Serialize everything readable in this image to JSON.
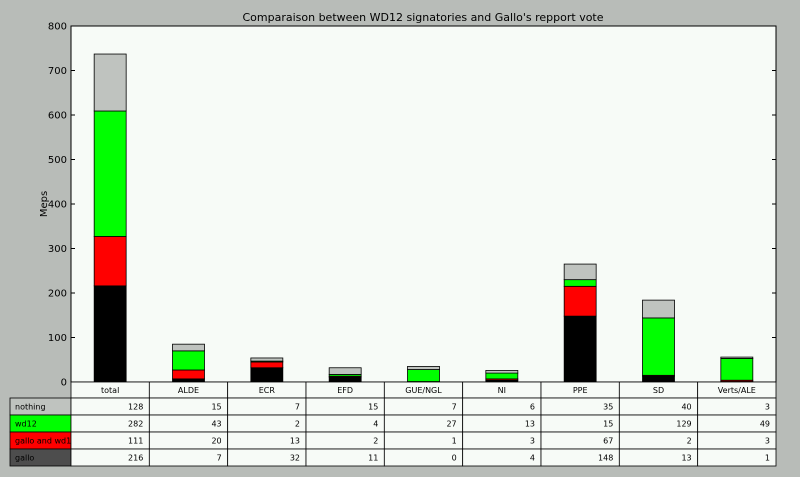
{
  "chart_data": {
    "type": "bar",
    "stacked": true,
    "title": "Comparaison between WD12 signatories and Gallo's repport vote",
    "ylabel": "Meps",
    "xlabel": "",
    "ylim": [
      0,
      800
    ],
    "yticks": [
      0,
      100,
      200,
      300,
      400,
      500,
      600,
      700,
      800
    ],
    "grid": false,
    "legend": "table below plot",
    "categories": [
      "total",
      "ALDE",
      "ECR",
      "EFD",
      "GUE/NGL",
      "NI",
      "PPE",
      "SD",
      "Verts/ALE"
    ],
    "series": [
      {
        "name": "gallo",
        "color": "#000000",
        "label_color": "#4d4d4d",
        "values": [
          216,
          7,
          32,
          11,
          0,
          4,
          148,
          13,
          1
        ]
      },
      {
        "name": "gallo and wd12",
        "color": "#ff0000",
        "label_color": "#ff0000",
        "values": [
          111,
          20,
          13,
          2,
          1,
          3,
          67,
          2,
          3
        ]
      },
      {
        "name": "wd12",
        "color": "#00ff00",
        "label_color": "#00ff00",
        "values": [
          282,
          43,
          2,
          4,
          27,
          13,
          15,
          129,
          49
        ]
      },
      {
        "name": "nothing",
        "color": "#bfc3bf",
        "label_color": "#bfc3bf",
        "values": [
          128,
          15,
          7,
          15,
          7,
          6,
          35,
          40,
          3
        ]
      }
    ],
    "table_row_order": [
      "nothing",
      "wd12",
      "gallo and wd12",
      "gallo"
    ]
  }
}
